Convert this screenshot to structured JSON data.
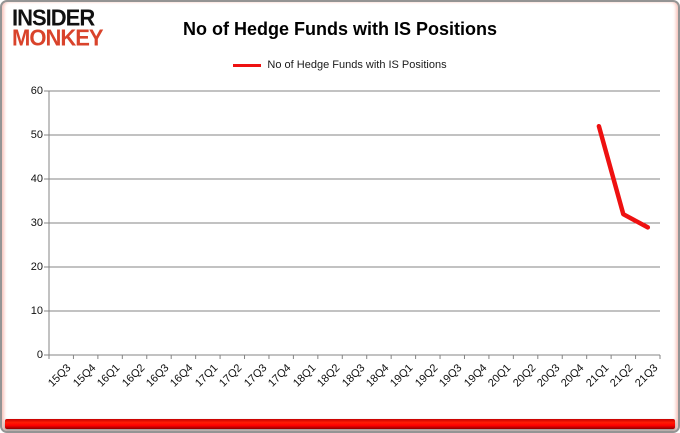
{
  "logo": {
    "line1": "INSIDER",
    "line2": "MONKEY"
  },
  "header": {
    "title": "No of Hedge Funds with IS Positions"
  },
  "legend": {
    "label": "No of Hedge Funds with IS Positions"
  },
  "colors": {
    "series_red": "#ee1111",
    "logo_red": "#d9432b",
    "grid_gray": "#848484",
    "bottom_bar_red": "#fe0000"
  },
  "chart_data": {
    "type": "line",
    "title": "No of Hedge Funds with IS Positions",
    "xlabel": "",
    "ylabel": "",
    "categories": [
      "15Q3",
      "15Q4",
      "16Q1",
      "16Q2",
      "16Q3",
      "16Q4",
      "17Q1",
      "17Q2",
      "17Q3",
      "17Q4",
      "18Q1",
      "18Q2",
      "18Q3",
      "18Q4",
      "19Q1",
      "19Q2",
      "19Q3",
      "19Q4",
      "20Q1",
      "20Q2",
      "20Q3",
      "20Q4",
      "21Q1",
      "21Q2",
      "21Q3"
    ],
    "series": [
      {
        "name": "No of Hedge Funds with IS Positions",
        "color": "#ee1111",
        "values": [
          null,
          null,
          null,
          null,
          null,
          null,
          null,
          null,
          null,
          null,
          null,
          null,
          null,
          null,
          null,
          null,
          null,
          null,
          null,
          null,
          null,
          null,
          52,
          32,
          29
        ]
      }
    ],
    "ylim": [
      0,
      60
    ],
    "yticks": [
      0,
      10,
      20,
      30,
      40,
      50,
      60
    ],
    "ytick_interval": 10,
    "grid": true,
    "legend_position": "top-center"
  }
}
